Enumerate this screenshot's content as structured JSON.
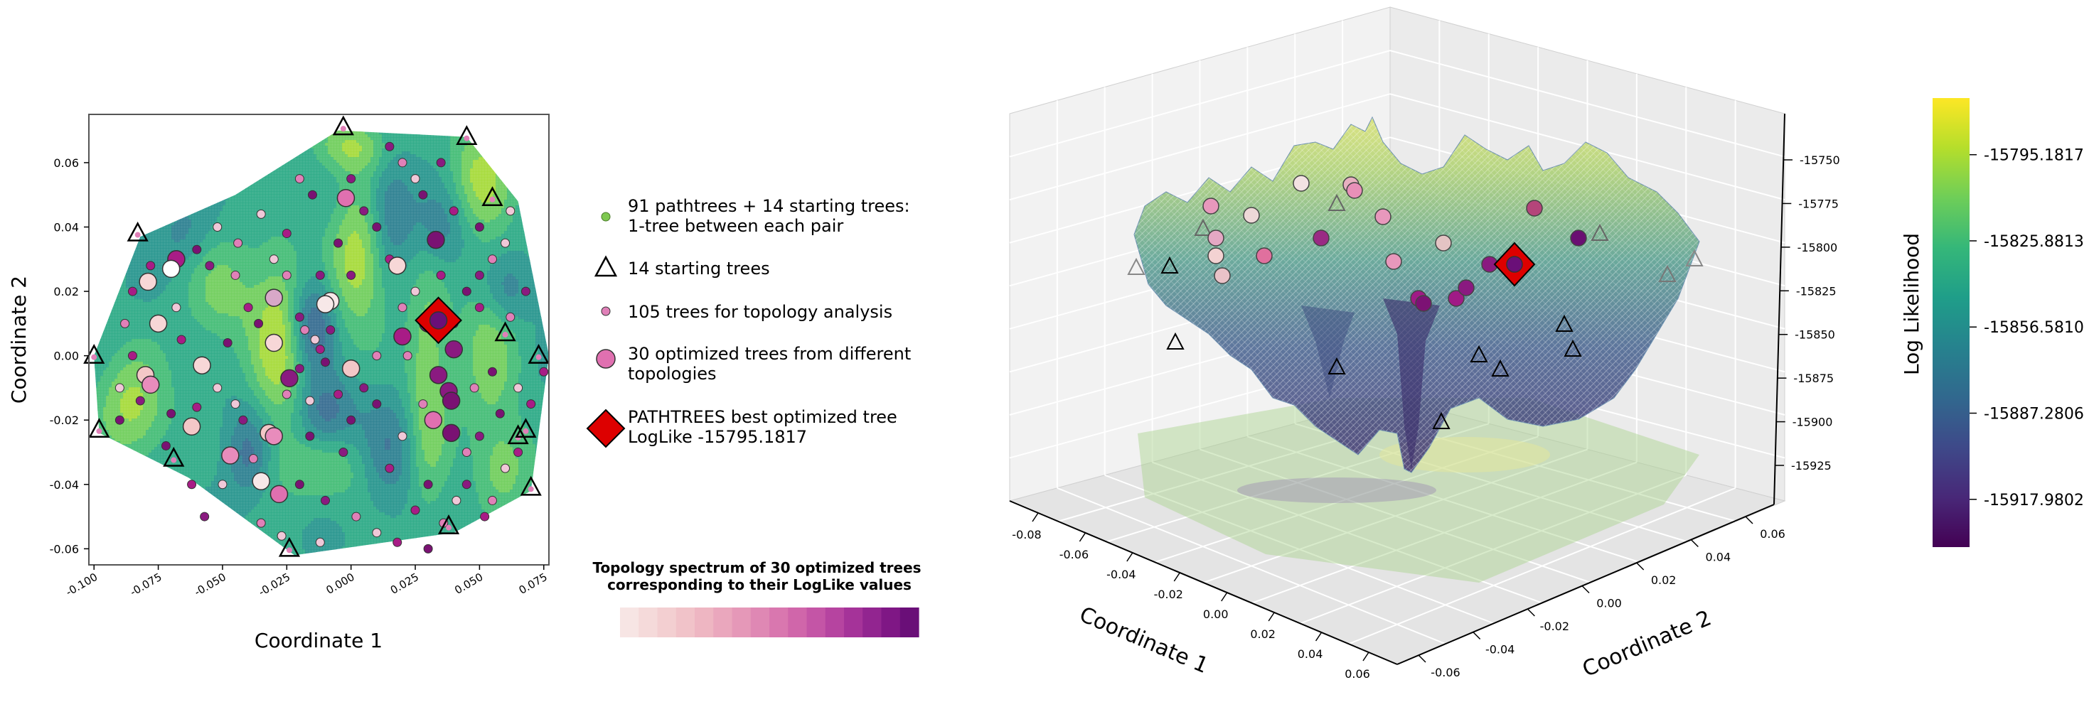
{
  "chart_data": [
    {
      "type": "scatter",
      "panel": "2D contour map",
      "xlabel": "Coordinate 1",
      "ylabel": "Coordinate 2",
      "xticks": [
        "-0.100",
        "-0.075",
        "-0.050",
        "-0.025",
        "0.000",
        "0.025",
        "0.050",
        "0.075"
      ],
      "xtick_values": [
        -0.1,
        -0.075,
        -0.05,
        -0.025,
        0,
        0.025,
        0.05,
        0.075
      ],
      "yticks": [
        "0.06",
        "0.04",
        "0.02",
        "0.00",
        "-0.02",
        "-0.04",
        "-0.06"
      ],
      "ytick_values": [
        0.06,
        0.04,
        0.02,
        0,
        -0.02,
        -0.04,
        -0.06
      ],
      "xlim": [
        -0.102,
        0.077
      ],
      "ylim": [
        -0.065,
        0.075
      ],
      "hull": [
        [
          -0.1,
          0.0
        ],
        [
          -0.082,
          0.037
        ],
        [
          -0.045,
          0.05
        ],
        [
          -0.005,
          0.07
        ],
        [
          0.045,
          0.068
        ],
        [
          0.065,
          0.048
        ],
        [
          0.077,
          0.0
        ],
        [
          0.07,
          -0.042
        ],
        [
          0.04,
          -0.055
        ],
        [
          -0.022,
          -0.062
        ],
        [
          -0.063,
          -0.038
        ],
        [
          -0.098,
          -0.024
        ]
      ],
      "contour_blobs": [
        {
          "x": -0.028,
          "y": 0.004,
          "sx": 0.008,
          "sy": 0.02,
          "amp": 1.0
        },
        {
          "x": 0.003,
          "y": 0.03,
          "sx": 0.008,
          "sy": 0.016,
          "amp": 1.0
        },
        {
          "x": 0.05,
          "y": 0.055,
          "sx": 0.009,
          "sy": 0.012,
          "amp": 0.9
        },
        {
          "x": 0.054,
          "y": 0.002,
          "sx": 0.008,
          "sy": 0.02,
          "amp": 0.7
        },
        {
          "x": -0.085,
          "y": -0.016,
          "sx": 0.01,
          "sy": 0.012,
          "amp": 0.9
        },
        {
          "x": -0.05,
          "y": 0.02,
          "sx": 0.01,
          "sy": 0.012,
          "amp": 0.6
        },
        {
          "x": 0.03,
          "y": -0.01,
          "sx": 0.006,
          "sy": 0.028,
          "amp": 0.8
        },
        {
          "x": 0.0,
          "y": 0.065,
          "sx": 0.01,
          "sy": 0.006,
          "amp": 0.8
        },
        {
          "x": -0.01,
          "y": -0.035,
          "sx": 0.014,
          "sy": 0.008,
          "amp": 0.5
        },
        {
          "x": 0.06,
          "y": -0.035,
          "sx": 0.008,
          "sy": 0.01,
          "amp": 0.6
        },
        {
          "x": -0.015,
          "y": 0.01,
          "sx": 0.006,
          "sy": 0.01,
          "amp": -1.0
        },
        {
          "x": -0.01,
          "y": -0.018,
          "sx": 0.008,
          "sy": 0.008,
          "amp": -0.8
        },
        {
          "x": 0.015,
          "y": 0.045,
          "sx": 0.006,
          "sy": 0.012,
          "amp": -0.7
        },
        {
          "x": -0.04,
          "y": -0.03,
          "sx": 0.006,
          "sy": 0.01,
          "amp": -0.7
        },
        {
          "x": 0.035,
          "y": 0.04,
          "sx": 0.008,
          "sy": 0.01,
          "amp": -0.6
        },
        {
          "x": 0.015,
          "y": -0.03,
          "sx": 0.008,
          "sy": 0.012,
          "amp": -0.6
        },
        {
          "x": -0.065,
          "y": 0.038,
          "sx": 0.008,
          "sy": 0.008,
          "amp": -0.4
        },
        {
          "x": 0.06,
          "y": 0.02,
          "sx": 0.007,
          "sy": 0.008,
          "amp": -0.6
        }
      ],
      "starting_trees": [
        [
          -0.003,
          0.071
        ],
        [
          0.045,
          0.068
        ],
        [
          0.055,
          0.049
        ],
        [
          -0.083,
          0.038
        ],
        [
          -0.1,
          0.0
        ],
        [
          0.06,
          0.007
        ],
        [
          0.073,
          0.0
        ],
        [
          -0.098,
          -0.023
        ],
        [
          0.065,
          -0.025
        ],
        [
          0.068,
          -0.023
        ],
        [
          -0.069,
          -0.032
        ],
        [
          0.07,
          -0.041
        ],
        [
          0.038,
          -0.053
        ],
        [
          -0.024,
          -0.06
        ]
      ],
      "optimized_trees": [
        {
          "x": -0.002,
          "y": 0.049,
          "c": "#e070b0"
        },
        {
          "x": -0.068,
          "y": 0.03,
          "c": "#a81c86"
        },
        {
          "x": -0.07,
          "y": 0.027,
          "c": "#ffffff"
        },
        {
          "x": -0.079,
          "y": 0.023,
          "c": "#f7d7d7"
        },
        {
          "x": 0.033,
          "y": 0.036,
          "c": "#7a1273"
        },
        {
          "x": 0.018,
          "y": 0.028,
          "c": "#f7d7d7"
        },
        {
          "x": -0.03,
          "y": 0.018,
          "c": "#d8a8c8"
        },
        {
          "x": -0.008,
          "y": 0.017,
          "c": "#f7e8e8"
        },
        {
          "x": -0.058,
          "y": -0.003,
          "c": "#f7d7d7"
        },
        {
          "x": -0.08,
          "y": -0.006,
          "c": "#f3c7c7"
        },
        {
          "x": -0.078,
          "y": -0.009,
          "c": "#e88cbc"
        },
        {
          "x": -0.024,
          "y": -0.007,
          "c": "#8a1a80"
        },
        {
          "x": 0.0,
          "y": -0.004,
          "c": "#f3c7c7"
        },
        {
          "x": 0.034,
          "y": -0.006,
          "c": "#8a1a80"
        },
        {
          "x": 0.038,
          "y": -0.011,
          "c": "#8a1a80"
        },
        {
          "x": 0.039,
          "y": -0.014,
          "c": "#7a1273"
        },
        {
          "x": -0.062,
          "y": -0.022,
          "c": "#f3c7c7"
        },
        {
          "x": 0.032,
          "y": -0.02,
          "c": "#e070b0"
        },
        {
          "x": 0.039,
          "y": -0.024,
          "c": "#7a1273"
        },
        {
          "x": -0.032,
          "y": -0.024,
          "c": "#f3c7c7"
        },
        {
          "x": -0.03,
          "y": -0.025,
          "c": "#e88cbc"
        },
        {
          "x": -0.047,
          "y": -0.031,
          "c": "#e88cbc"
        },
        {
          "x": -0.035,
          "y": -0.039,
          "c": "#f7e8e8"
        },
        {
          "x": -0.028,
          "y": -0.043,
          "c": "#e070b0"
        },
        {
          "x": 0.03,
          "y": 0.01,
          "c": "#8a1a80"
        },
        {
          "x": -0.03,
          "y": 0.004,
          "c": "#f7d7d7"
        },
        {
          "x": -0.075,
          "y": 0.01,
          "c": "#f7d7d7"
        },
        {
          "x": 0.04,
          "y": 0.002,
          "c": "#8a1a80"
        },
        {
          "x": 0.02,
          "y": 0.006,
          "c": "#a81c86"
        },
        {
          "x": -0.01,
          "y": 0.016,
          "c": "#f7e8e8"
        }
      ],
      "topology_trees": [
        [
          -0.06,
          0.033
        ],
        [
          -0.055,
          0.028
        ],
        [
          -0.045,
          0.025
        ],
        [
          -0.035,
          0.044
        ],
        [
          -0.025,
          0.038
        ],
        [
          -0.015,
          0.05
        ],
        [
          0.015,
          0.065
        ],
        [
          0.02,
          0.06
        ],
        [
          0.025,
          0.055
        ],
        [
          -0.04,
          0.015
        ],
        [
          -0.036,
          0.01
        ],
        [
          -0.02,
          0.012
        ],
        [
          -0.018,
          0.008
        ],
        [
          -0.014,
          0.005
        ],
        [
          -0.012,
          0.002
        ],
        [
          -0.01,
          -0.002
        ],
        [
          -0.02,
          -0.004
        ],
        [
          -0.025,
          -0.012
        ],
        [
          -0.016,
          -0.014
        ],
        [
          -0.005,
          -0.012
        ],
        [
          0.0,
          -0.02
        ],
        [
          0.005,
          -0.01
        ],
        [
          0.01,
          0.0
        ],
        [
          -0.052,
          -0.01
        ],
        [
          -0.06,
          -0.016
        ],
        [
          -0.07,
          -0.018
        ],
        [
          -0.082,
          -0.014
        ],
        [
          -0.088,
          0.01
        ],
        [
          -0.09,
          -0.01
        ],
        [
          -0.085,
          0.0
        ],
        [
          -0.048,
          0.004
        ],
        [
          -0.042,
          -0.02
        ],
        [
          -0.038,
          -0.032
        ],
        [
          -0.05,
          -0.04
        ],
        [
          -0.062,
          -0.04
        ],
        [
          -0.02,
          -0.04
        ],
        [
          -0.01,
          -0.045
        ],
        [
          0.002,
          -0.05
        ],
        [
          0.01,
          -0.055
        ],
        [
          0.025,
          -0.048
        ],
        [
          0.03,
          -0.04
        ],
        [
          0.045,
          -0.04
        ],
        [
          0.055,
          -0.045
        ],
        [
          0.06,
          -0.035
        ],
        [
          0.065,
          -0.03
        ],
        [
          0.045,
          0.02
        ],
        [
          0.05,
          0.025
        ],
        [
          0.055,
          0.03
        ],
        [
          0.06,
          0.035
        ],
        [
          0.04,
          0.045
        ],
        [
          0.028,
          0.05
        ],
        [
          0.035,
          0.06
        ],
        [
          0.062,
          0.012
        ],
        [
          0.065,
          -0.01
        ],
        [
          0.07,
          -0.015
        ],
        [
          0.058,
          -0.018
        ],
        [
          0.05,
          -0.025
        ],
        [
          0.045,
          -0.03
        ],
        [
          0.02,
          -0.025
        ],
        [
          0.015,
          -0.035
        ],
        [
          0.01,
          0.04
        ],
        [
          0.005,
          0.045
        ],
        [
          0.02,
          0.015
        ],
        [
          0.025,
          0.02
        ],
        [
          0.05,
          0.015
        ],
        [
          0.055,
          -0.005
        ],
        [
          -0.012,
          0.025
        ],
        [
          -0.025,
          0.025
        ],
        [
          -0.03,
          0.03
        ],
        [
          -0.066,
          0.005
        ],
        [
          -0.072,
          -0.028
        ],
        [
          -0.057,
          -0.05
        ],
        [
          -0.035,
          -0.052
        ],
        [
          -0.027,
          -0.056
        ],
        [
          0.018,
          -0.058
        ],
        [
          0.03,
          -0.06
        ],
        [
          0.04,
          0.01
        ],
        [
          0.048,
          -0.01
        ],
        [
          0.062,
          0.045
        ],
        [
          0.035,
          0.025
        ],
        [
          -0.005,
          0.035
        ],
        [
          0.0,
          0.055
        ],
        [
          -0.044,
          0.035
        ],
        [
          -0.052,
          0.04
        ],
        [
          -0.085,
          0.02
        ],
        [
          0.01,
          -0.015
        ],
        [
          -0.003,
          -0.03
        ],
        [
          0.022,
          0.0
        ],
        [
          0.041,
          -0.045
        ],
        [
          0.052,
          -0.05
        ],
        [
          -0.016,
          -0.025
        ],
        [
          -0.008,
          0.008
        ],
        [
          0.028,
          -0.015
        ],
        [
          -0.045,
          -0.015
        ],
        [
          0.015,
          0.03
        ],
        [
          0.05,
          0.04
        ],
        [
          0.068,
          0.02
        ],
        [
          -0.02,
          0.055
        ],
        [
          -0.068,
          0.015
        ],
        [
          -0.078,
          0.028
        ],
        [
          -0.09,
          -0.02
        ],
        [
          0.0,
          0.025
        ],
        [
          0.036,
          -0.052
        ],
        [
          -0.012,
          -0.058
        ],
        [
          0.075,
          -0.005
        ]
      ],
      "best_tree": {
        "x": 0.034,
        "y": 0.011,
        "loglike": "-15795.1817"
      }
    },
    {
      "type": "surface",
      "panel": "3D log-likelihood landscape",
      "xlabel": "Coordinate 1",
      "ylabel": "Coordinate 2",
      "zlabel": "Log Likelihood",
      "xticks": [
        "-0.08",
        "-0.06",
        "-0.04",
        "-0.02",
        "0.00",
        "0.02",
        "0.04",
        "0.06"
      ],
      "yticks": [
        "-0.06",
        "-0.04",
        "-0.02",
        "0.00",
        "0.02",
        "0.04",
        "0.06"
      ],
      "zticks": [
        "-15750",
        "-15775",
        "-15800",
        "-15825",
        "-15850",
        "-15875",
        "-15900",
        "-15925"
      ],
      "zlim": [
        -15935,
        -15740
      ]
    }
  ],
  "legend": {
    "pathtrees": "91 pathtrees + 14 starting trees:\n1-tree between each pair",
    "starting": "14 starting trees",
    "topology": "105 trees for topology analysis",
    "optimized": "30 optimized trees  from different\ntopologies",
    "best": "PATHTREES best optimized tree\nLogLike -15795.1817"
  },
  "spectrum": {
    "title": "Topology spectrum of 30 optimized trees\ncorresponding to their LogLike values",
    "colors": [
      "#f7e5e4",
      "#f5dada",
      "#f3cfd1",
      "#f1c3c9",
      "#eeb6c2",
      "#eaa7bd",
      "#e598b8",
      "#df88b4",
      "#d977af",
      "#d066aa",
      "#c455a6",
      "#b644a0",
      "#a53399",
      "#922590",
      "#7f1785",
      "#6a0f78"
    ]
  },
  "colorbar": {
    "ticks": [
      "-15795.1817",
      "-15825.8813",
      "-15856.5810",
      "-15887.2806",
      "-15917.9802"
    ],
    "tick_values": [
      -15795.1817,
      -15825.8813,
      -15856.581,
      -15887.2806,
      -15917.9802
    ],
    "vmin": -15935,
    "vmax": -15775,
    "colors": [
      "#440154",
      "#482878",
      "#3e4989",
      "#31688e",
      "#26828e",
      "#1f9e89",
      "#35b779",
      "#6ece58",
      "#b5de2b",
      "#fde725"
    ]
  }
}
